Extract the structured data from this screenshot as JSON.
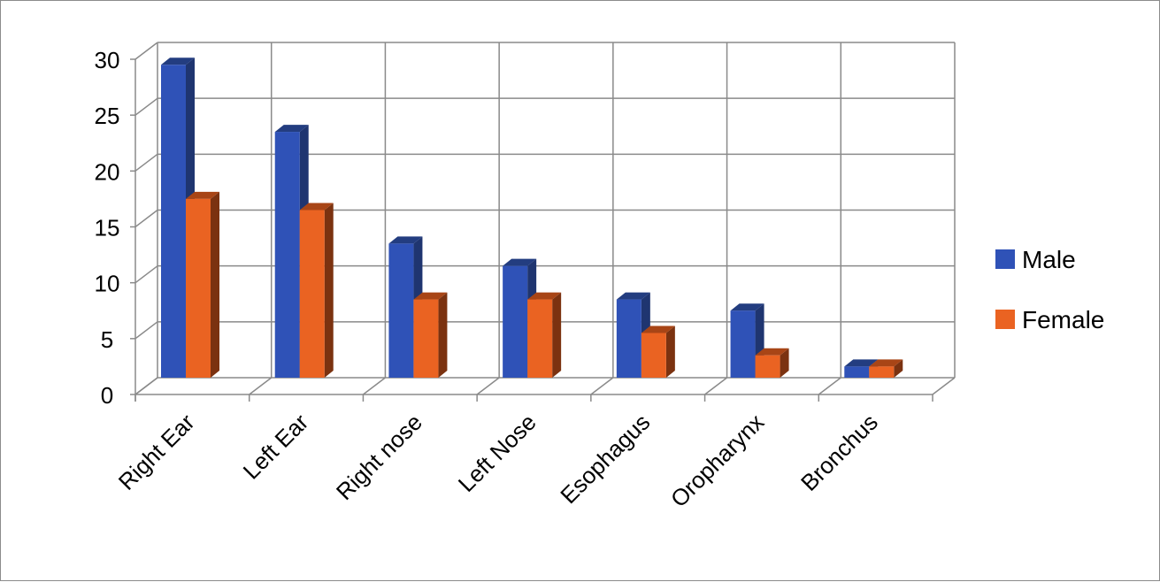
{
  "chart_data": {
    "type": "bar",
    "style": "3d-clustered-column",
    "title": "",
    "xlabel": "",
    "ylabel": "",
    "categories": [
      "Right Ear",
      "Left Ear",
      "Right nose",
      "Left Nose",
      "Esophagus",
      "Oropharynx",
      "Bronchus"
    ],
    "series": [
      {
        "name": "Male",
        "values": [
          28,
          22,
          12,
          10,
          7,
          6,
          1
        ],
        "color": "#2f52b7",
        "side_color": "#1f3570",
        "top_color": "#233d80"
      },
      {
        "name": "Female",
        "values": [
          16,
          15,
          7,
          7,
          4,
          2,
          1
        ],
        "color": "#ea6322",
        "side_color": "#7b3210",
        "top_color": "#a84516"
      }
    ],
    "ylim": [
      0,
      30
    ],
    "yticks": [
      0,
      5,
      10,
      15,
      20,
      25,
      30
    ],
    "grid": true,
    "legend_position": "right"
  }
}
